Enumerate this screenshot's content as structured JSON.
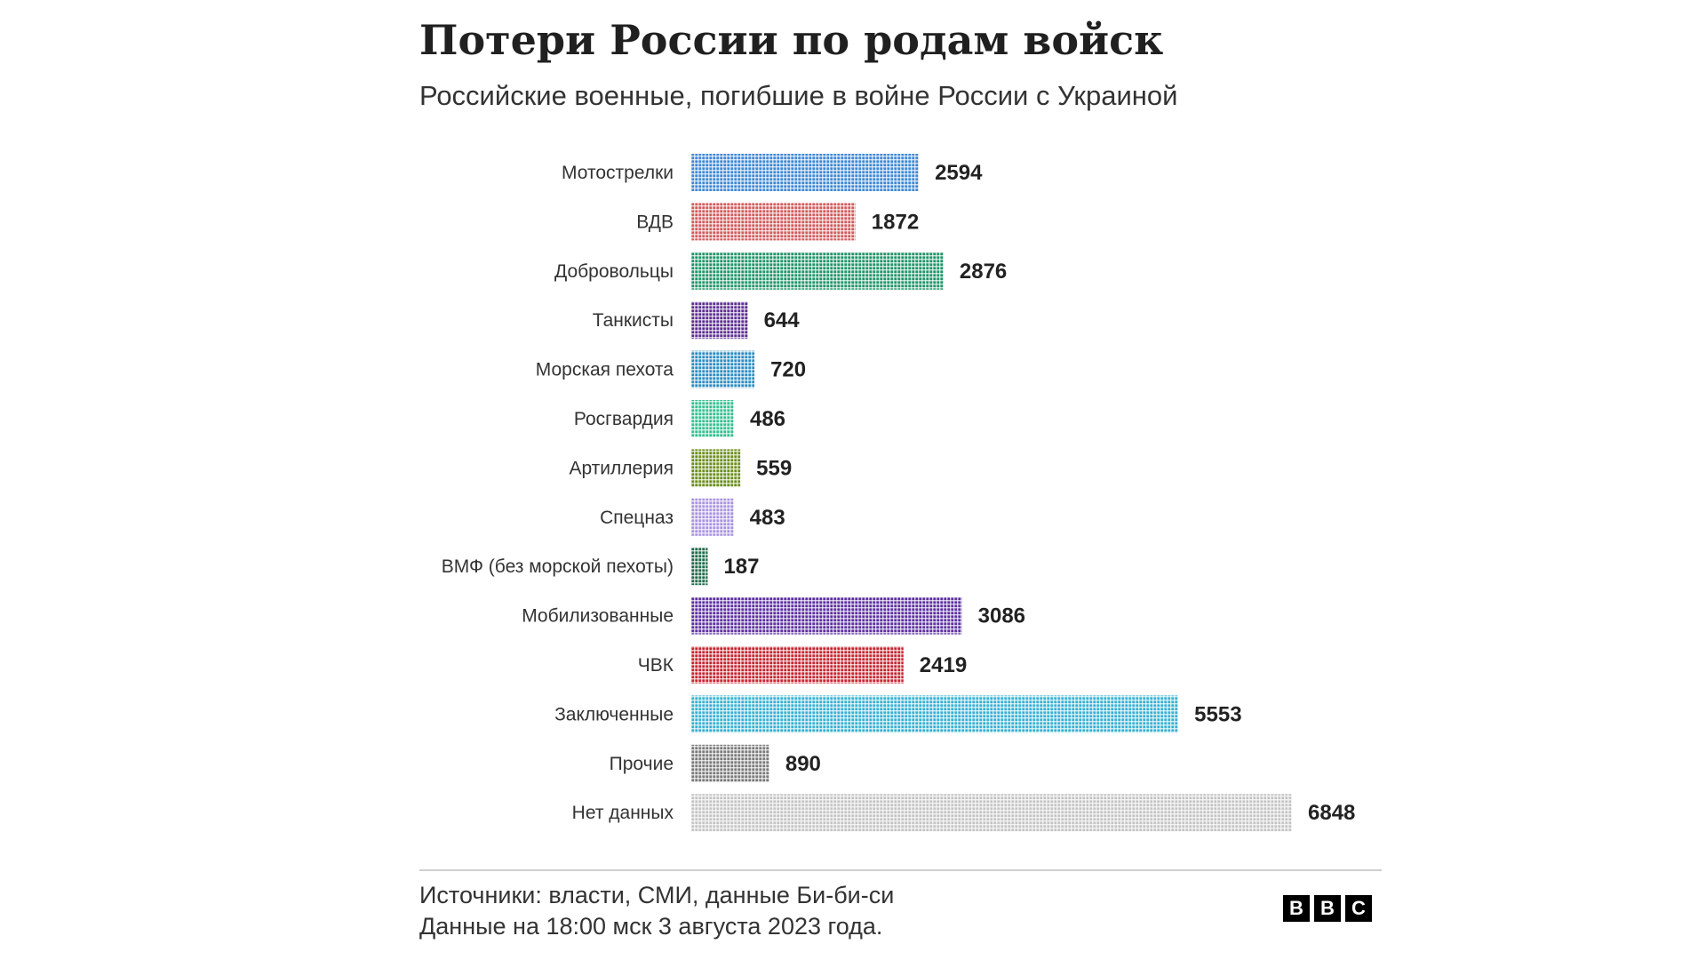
{
  "chart_data": {
    "type": "bar",
    "orientation": "horizontal",
    "title": "Потери России по родам войск",
    "subtitle": "Российские военные, погибшие в войне России с Украиной",
    "categories": [
      "Мотострелки",
      "ВДВ",
      "Добровольцы",
      "Танкисты",
      "Морская пехота",
      "Росгвардия",
      "Артиллерия",
      "Спецназ",
      "ВМФ (без морской пехоты)",
      "Мобилизованные",
      "ЧВК",
      "Заключенные",
      "Прочие",
      "Нет данных"
    ],
    "values": [
      2594,
      1872,
      2876,
      644,
      720,
      486,
      559,
      483,
      187,
      3086,
      2419,
      5553,
      890,
      6848
    ],
    "colors": [
      "#3f87d3",
      "#d15a5c",
      "#1f9468",
      "#5b2d8e",
      "#2b8cbf",
      "#34c08f",
      "#6b8e1e",
      "#a993e0",
      "#1e6a4a",
      "#5a2ea0",
      "#c5232f",
      "#38b1d0",
      "#7a7a7a",
      "#c4c4c4"
    ],
    "xlim": [
      0,
      6848
    ],
    "grid": false,
    "legend": "none",
    "mark_style": "dot-matrix"
  },
  "footer": {
    "source": "Источники: власти, СМИ, данные Би-би-си",
    "date_note": "Данные на 18:00 мск 3 августа 2023 года."
  },
  "logo": {
    "letters": [
      "B",
      "B",
      "C"
    ]
  }
}
